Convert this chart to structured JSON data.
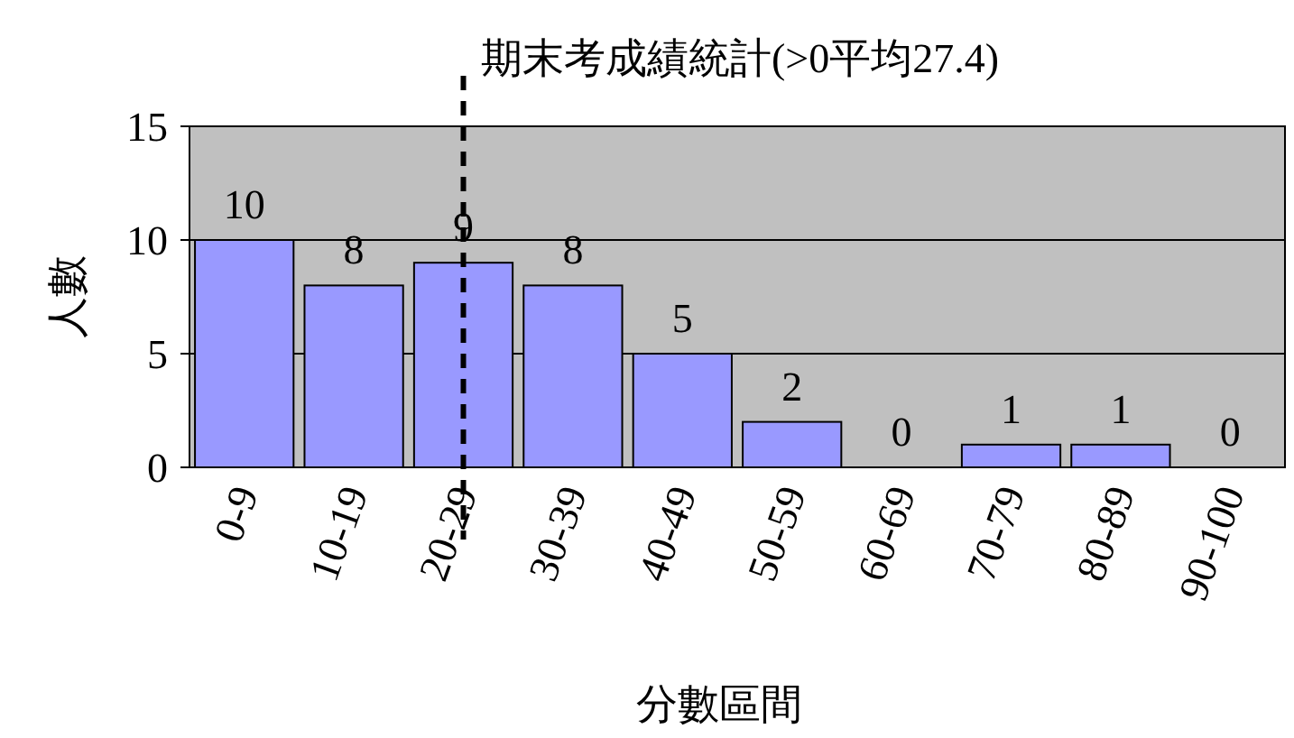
{
  "chart_data": {
    "type": "bar",
    "title": "期末考成績統計(>0平均27.4)",
    "xlabel": "分數區間",
    "ylabel": "人數",
    "categories": [
      "0-9",
      "10-19",
      "20-29",
      "30-39",
      "40-49",
      "50-59",
      "60-69",
      "70-79",
      "80-89",
      "90-100"
    ],
    "values": [
      10,
      8,
      9,
      8,
      5,
      2,
      0,
      1,
      1,
      0
    ],
    "color": "#9999ff",
    "data_labels": true,
    "ylim": [
      0,
      15
    ],
    "yticks": [
      0,
      5,
      10,
      15
    ],
    "grid": "y",
    "ref_lines": [
      {
        "axis": "x",
        "value": "20-29",
        "line_style": "dashed",
        "color": "#000000"
      }
    ]
  }
}
